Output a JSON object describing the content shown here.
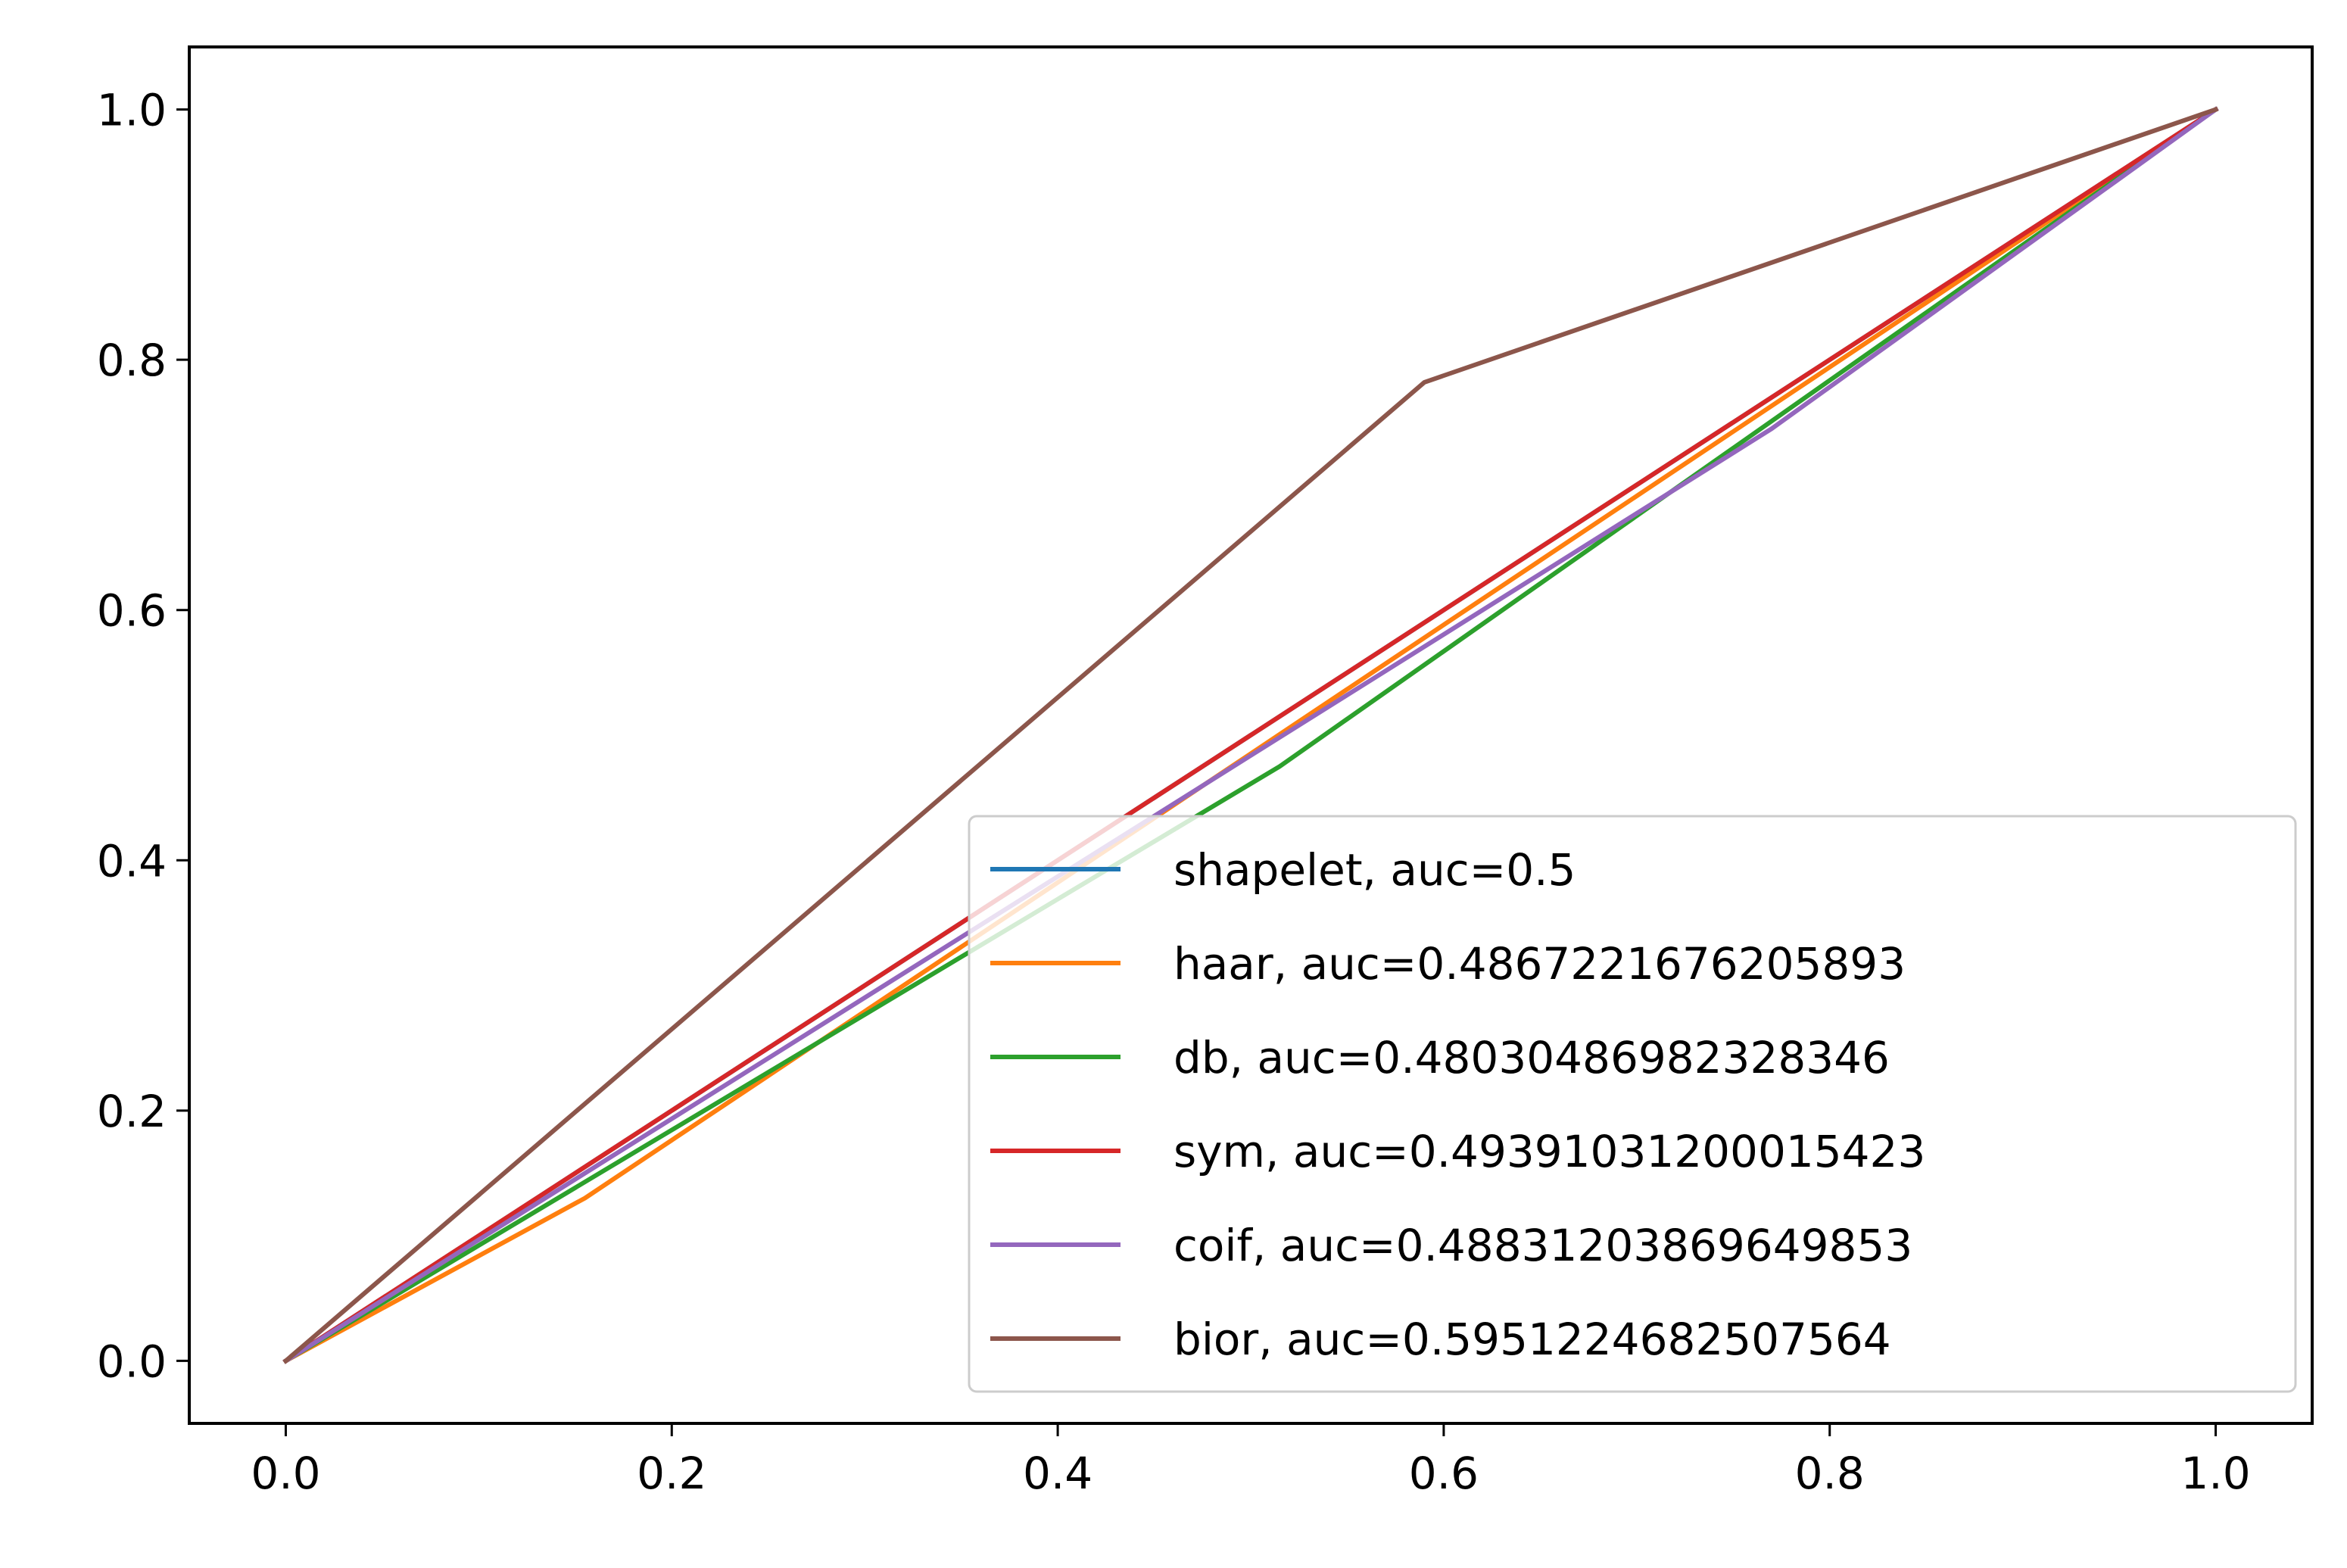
{
  "chart_data": {
    "type": "line",
    "title": "",
    "xlabel": "",
    "ylabel": "",
    "xlim": [
      -0.05,
      1.05
    ],
    "ylim": [
      -0.05,
      1.05
    ],
    "xticks": [
      0.0,
      0.2,
      0.4,
      0.6,
      0.8,
      1.0
    ],
    "xtick_labels": [
      "0.0",
      "0.2",
      "0.4",
      "0.6",
      "0.8",
      "1.0"
    ],
    "yticks": [
      0.0,
      0.2,
      0.4,
      0.6,
      0.8,
      1.0
    ],
    "ytick_labels": [
      "0.0",
      "0.2",
      "0.4",
      "0.6",
      "0.8",
      "1.0"
    ],
    "grid": false,
    "legend_position": "lower-right",
    "series": [
      {
        "name": "shapelet, auc=0.5",
        "color": "#1f77b4",
        "x": [
          0.0,
          1.0
        ],
        "y": [
          0.0,
          1.0
        ]
      },
      {
        "name": "haar, auc=0.4867221676205893",
        "color": "#ff7f0e",
        "x": [
          0.0,
          0.155,
          1.0
        ],
        "y": [
          0.0,
          0.13,
          1.0
        ]
      },
      {
        "name": "db, auc=0.48030486982328346",
        "color": "#2ca02c",
        "x": [
          0.0,
          0.515,
          1.0
        ],
        "y": [
          0.0,
          0.475,
          1.0
        ]
      },
      {
        "name": "sym, auc=0.49391031200015423",
        "color": "#d62728",
        "x": [
          0.0,
          1.0
        ],
        "y": [
          0.0,
          1.0
        ]
      },
      {
        "name": "coif, auc=0.48831203869649853",
        "color": "#9467bd",
        "x": [
          0.0,
          0.77,
          1.0
        ],
        "y": [
          0.0,
          0.745,
          1.0
        ]
      },
      {
        "name": "bior, auc=0.5951224682507564",
        "color": "#8c564b",
        "x": [
          0.0,
          0.59,
          1.0
        ],
        "y": [
          0.0,
          0.782,
          1.0
        ]
      }
    ]
  }
}
